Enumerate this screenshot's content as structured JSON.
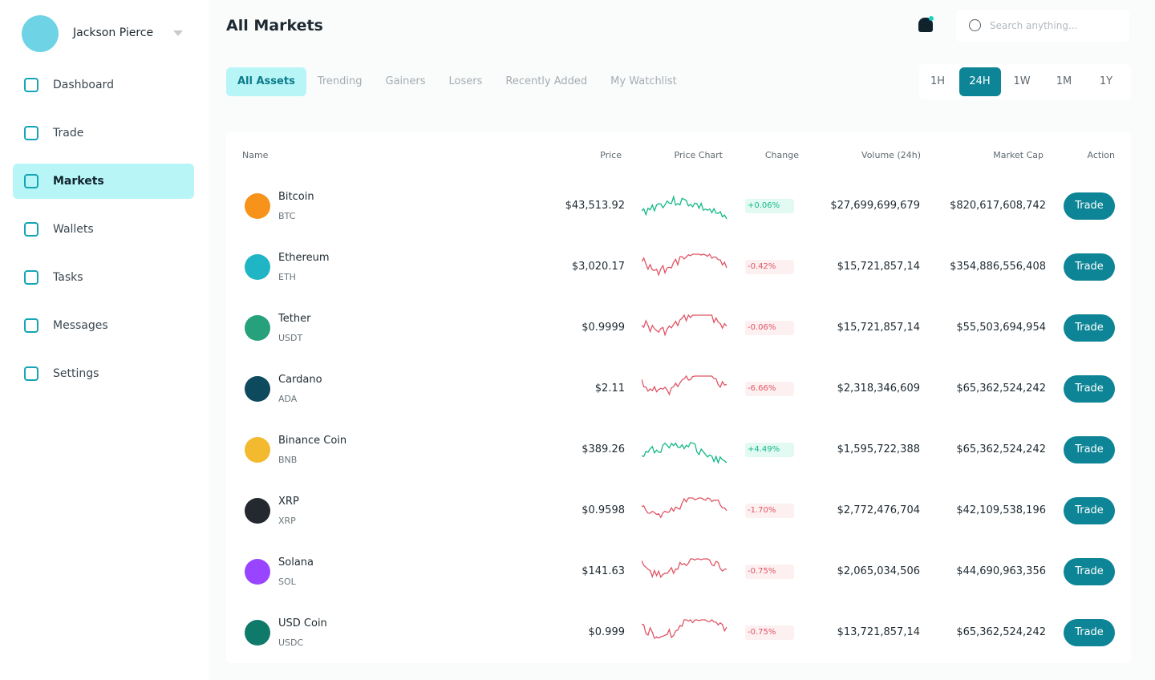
{
  "sidebar": {
    "user": "Jackson Pierce",
    "nav": [
      "Dashboard",
      "Trade",
      "Markets",
      "Wallets",
      "Tasks",
      "Messages",
      "Settings"
    ],
    "active": 2
  },
  "header": {
    "title": "All Markets",
    "search_placeholder": "Search anything..."
  },
  "tabs": {
    "items": [
      "All Assets",
      "Trending",
      "Gainers",
      "Losers",
      "Recently Added",
      "My Watchlist"
    ],
    "active": 0
  },
  "periods": {
    "items": [
      "1H",
      "24H",
      "1W",
      "1M",
      "1Y"
    ],
    "active": 1
  },
  "table": {
    "columns": [
      "Name",
      "Price",
      "Price Chart",
      "Change",
      "Volume (24h)",
      "Market Cap",
      "Action"
    ],
    "rows": [
      {
        "name": "Bitcoin",
        "symbol": "BTC",
        "price": "$43,513.92",
        "change": "+0.06%",
        "volume": "$27,699,699,679",
        "market_cap": "$820,617,608,742",
        "action": "Trade",
        "icon_color": "#f7931a"
      },
      {
        "name": "Ethereum",
        "symbol": "ETH",
        "price": "$3,020.17",
        "change": "-0.42%",
        "volume": "$15,721,857,14",
        "market_cap": "$354,886,556,408",
        "action": "Trade",
        "icon_color": "#1fb5c4"
      },
      {
        "name": "Tether",
        "symbol": "USDT",
        "price": "$0.9999",
        "change": "-0.06%",
        "volume": "$15,721,857,14",
        "market_cap": "$55,503,694,954",
        "action": "Trade",
        "icon_color": "#26a17b"
      },
      {
        "name": "Cardano",
        "symbol": "ADA",
        "price": "$2.11",
        "change": "-6.66%",
        "volume": "$2,318,346,609",
        "market_cap": "$65,362,524,242",
        "action": "Trade",
        "icon_color": "#0d4a5e"
      },
      {
        "name": "Binance Coin",
        "symbol": "BNB",
        "price": "$389.26",
        "change": "+4.49%",
        "volume": "$1,595,722,388",
        "market_cap": "$65,362,524,242",
        "action": "Trade",
        "icon_color": "#f3ba2f"
      },
      {
        "name": "XRP",
        "symbol": "XRP",
        "price": "$0.9598",
        "change": "-1.70%",
        "volume": "$2,772,476,704",
        "market_cap": "$42,109,538,196",
        "action": "Trade",
        "icon_color": "#23292f"
      },
      {
        "name": "Solana",
        "symbol": "SOL",
        "price": "$141.63",
        "change": "-0.75%",
        "volume": "$2,065,034,506",
        "market_cap": "$44,690,963,356",
        "action": "Trade",
        "icon_color": "#9945ff"
      },
      {
        "name": "USD Coin",
        "symbol": "USDC",
        "price": "$0.999",
        "change": "-0.75%",
        "volume": "$13,721,857,14",
        "market_cap": "$65,362,524,242",
        "action": "Trade",
        "icon_color": "#0f7a6a"
      }
    ]
  }
}
